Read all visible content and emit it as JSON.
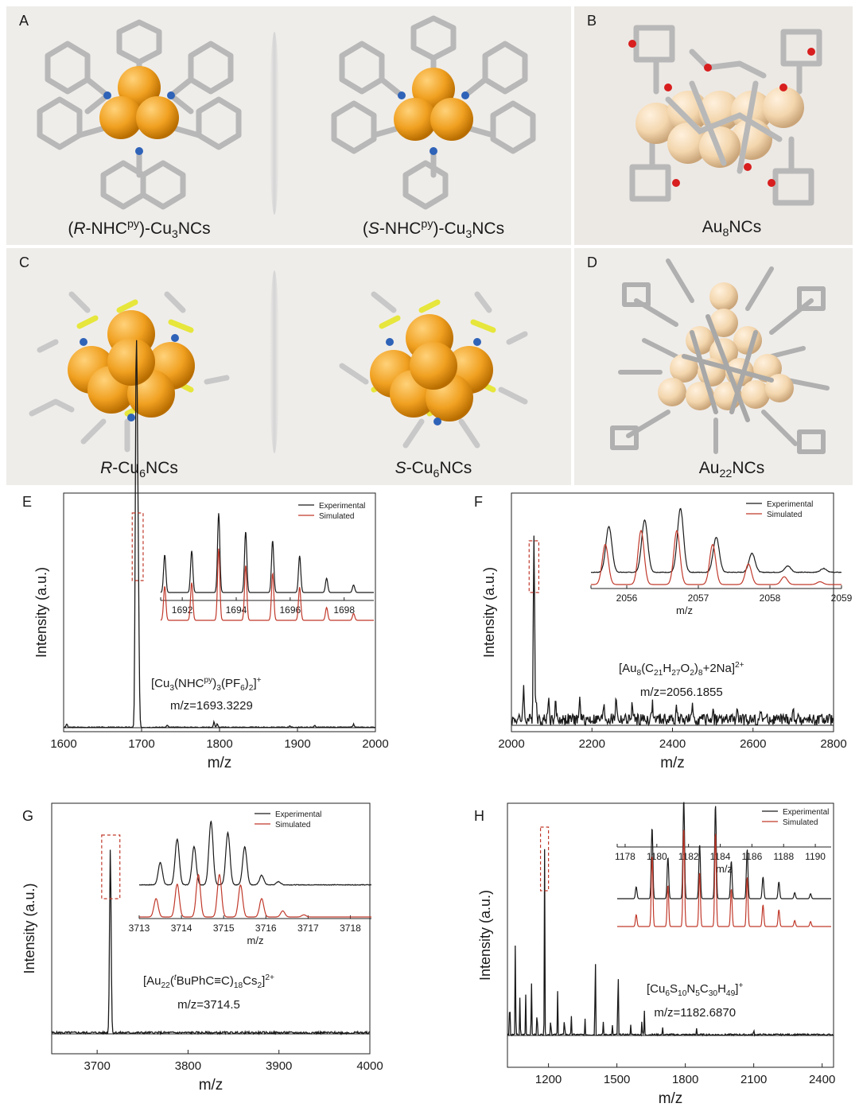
{
  "panels": {
    "A": {
      "label": "A",
      "captions": [
        {
          "pre": "(",
          "italic": "R",
          "mid": "-NHC",
          "sup": "py",
          "post": ")-Cu",
          "sub": "3",
          "tail": "NCs"
        },
        {
          "pre": "(",
          "italic": "S",
          "mid": "-NHC",
          "sup": "py",
          "post": ")-Cu",
          "sub": "3",
          "tail": "NCs"
        }
      ]
    },
    "B": {
      "label": "B",
      "caption": {
        "pre": "Au",
        "sub": "8",
        "tail": "NCs"
      }
    },
    "C": {
      "label": "C",
      "captions": [
        {
          "italic": "R",
          "pre": "-Cu",
          "sub": "6",
          "tail": "NCs"
        },
        {
          "italic": "S",
          "pre": "-Cu",
          "sub": "6",
          "tail": "NCs"
        }
      ]
    },
    "D": {
      "label": "D",
      "caption": {
        "pre": "Au",
        "sub": "22",
        "tail": "NCs"
      }
    },
    "E": {
      "label": "E"
    },
    "F": {
      "label": "F"
    },
    "G": {
      "label": "G"
    },
    "H": {
      "label": "H"
    }
  },
  "colors": {
    "panel_bg": "#efedea",
    "cu_atom": "#f0a020",
    "au_atom": "#f3d6ad",
    "carbon": "#bdbdbd",
    "nitrogen": "#2f63b8",
    "oxygen": "#d81e1e",
    "sulfur": "#e6e63c",
    "experimental": "#1a1a1a",
    "simulated": "#c0392b"
  },
  "chart_data": [
    {
      "id": "E",
      "type": "line",
      "xlabel": "m/z",
      "ylabel": "Intensity (a.u.)",
      "xlim": [
        1600,
        2000
      ],
      "xticks": [
        1600,
        1700,
        1800,
        1900,
        2000
      ],
      "main_peaks": [
        [
          1604,
          0.015
        ],
        [
          1692,
          0.55
        ],
        [
          1693,
          0.97
        ],
        [
          1694,
          0.85
        ],
        [
          1695,
          0.6
        ],
        [
          1696,
          0.35
        ],
        [
          1697,
          0.12
        ],
        [
          1733,
          0.01
        ],
        [
          1793,
          0.025
        ],
        [
          1797,
          0.015
        ],
        [
          1890,
          0.008
        ],
        [
          1922,
          0.01
        ],
        [
          1972,
          0.015
        ]
      ],
      "highlight_box": [
        1688,
        1702
      ],
      "annotation": {
        "pre": "[Cu",
        "s1": "3",
        "m1": "(NHC",
        "sup1": "py",
        "m2": ")",
        "s2": "3",
        "m3": "(PF",
        "s3": "6",
        "m4": ")",
        "s4": "2",
        "m5": "]",
        "sup2": "+",
        "line2": "m/z=1693.3229"
      },
      "inset": {
        "xlim": [
          1691.2,
          1699.1
        ],
        "xticks": [
          1692,
          1694,
          1696,
          1698
        ],
        "legend": [
          "Experimental",
          "Simulated"
        ],
        "peaks": [
          [
            1691.35,
            0.45
          ],
          [
            1692.35,
            0.5
          ],
          [
            1693.35,
            0.95
          ],
          [
            1694.35,
            0.73
          ],
          [
            1695.35,
            0.62
          ],
          [
            1696.35,
            0.44
          ],
          [
            1697.35,
            0.17
          ],
          [
            1698.35,
            0.09
          ]
        ]
      }
    },
    {
      "id": "F",
      "type": "line",
      "xlabel": "m/z",
      "ylabel": "Intensity (a.u.)",
      "xlim": [
        2000,
        2800
      ],
      "xticks": [
        2000,
        2200,
        2400,
        2600,
        2800
      ],
      "main_peaks": [
        [
          2056,
          0.98
        ],
        [
          2030,
          0.17
        ],
        [
          2062,
          0.1
        ],
        [
          2092,
          0.12
        ],
        [
          2110,
          0.09
        ],
        [
          2170,
          0.11
        ],
        [
          2230,
          0.09
        ],
        [
          2260,
          0.13
        ],
        [
          2300,
          0.08
        ],
        [
          2350,
          0.08
        ],
        [
          2410,
          0.07
        ],
        [
          2450,
          0.06
        ],
        [
          2500,
          0.06
        ],
        [
          2560,
          0.05
        ],
        [
          2620,
          0.05
        ],
        [
          2700,
          0.04
        ]
      ],
      "highlight_box": [
        2044,
        2068
      ],
      "annotation": {
        "pre": "[Au",
        "s1": "8",
        "m1": "(C",
        "s2": "21",
        "m2": "H",
        "s3": "27",
        "m3": "O",
        "s4": "2",
        "m4": ")",
        "s5": "8",
        "m5": "+2Na]",
        "sup": "2+",
        "line2": "m/z=2056.1855"
      },
      "inset": {
        "xlim": [
          2055.5,
          2059
        ],
        "xticks": [
          2056,
          2057,
          2058,
          2059
        ],
        "xlabel": "m/z",
        "legend": [
          "Experimental",
          "Simulated"
        ],
        "exp_peaks": [
          [
            2055.75,
            0.72
          ],
          [
            2056.25,
            0.82
          ],
          [
            2056.75,
            1.0
          ],
          [
            2057.25,
            0.55
          ],
          [
            2057.75,
            0.3
          ],
          [
            2058.25,
            0.1
          ],
          [
            2058.75,
            0.06
          ]
        ],
        "sim_peaks": [
          [
            2055.7,
            0.72
          ],
          [
            2056.2,
            0.97
          ],
          [
            2056.7,
            0.97
          ],
          [
            2057.2,
            0.72
          ],
          [
            2057.7,
            0.37
          ],
          [
            2058.2,
            0.14
          ],
          [
            2058.7,
            0.05
          ]
        ]
      }
    },
    {
      "id": "G",
      "type": "line",
      "xlabel": "m/z",
      "ylabel": "Intensity (a.u.)",
      "xlim": [
        3650,
        4000
      ],
      "xticks": [
        3700,
        3800,
        3900,
        4000
      ],
      "main_peaks": [
        [
          3714.5,
          0.97
        ]
      ],
      "highlight_box": [
        3705,
        3725
      ],
      "annotation": {
        "pre": "[Au",
        "s1": "22",
        "m1": "(",
        "sup1": "t",
        "m2": "BuPhC≡C)",
        "s2": "18",
        "m3": "Cs",
        "s3": "2",
        "m4": "]",
        "sup2": "2+",
        "line2": "m/z=3714.5"
      },
      "inset": {
        "xlim": [
          3713,
          3718.5
        ],
        "xticks": [
          3713,
          3714,
          3715,
          3716,
          3717,
          3718
        ],
        "xlabel": "m/z",
        "legend": [
          "Experimental",
          "Simulated"
        ],
        "exp_peaks": [
          [
            3713.5,
            0.35
          ],
          [
            3713.9,
            0.72
          ],
          [
            3714.3,
            0.6
          ],
          [
            3714.7,
            1.0
          ],
          [
            3715.1,
            0.82
          ],
          [
            3715.5,
            0.6
          ],
          [
            3715.9,
            0.15
          ],
          [
            3716.3,
            0.05
          ]
        ],
        "sim_peaks": [
          [
            3713.4,
            0.42
          ],
          [
            3713.9,
            0.75
          ],
          [
            3714.4,
            0.97
          ],
          [
            3714.9,
            0.97
          ],
          [
            3715.4,
            0.73
          ],
          [
            3715.9,
            0.42
          ],
          [
            3716.4,
            0.14
          ],
          [
            3716.9,
            0.05
          ]
        ]
      }
    },
    {
      "id": "H",
      "type": "line",
      "xlabel": "m/z",
      "ylabel": "Intensity (a.u.)",
      "xlim": [
        1020,
        2450
      ],
      "xticks": [
        1200,
        1500,
        1800,
        2100,
        2400
      ],
      "main_peaks": [
        [
          1030,
          0.28
        ],
        [
          1055,
          0.55
        ],
        [
          1075,
          0.22
        ],
        [
          1100,
          0.2
        ],
        [
          1125,
          0.35
        ],
        [
          1150,
          0.18
        ],
        [
          1182.7,
          0.97
        ],
        [
          1210,
          0.12
        ],
        [
          1240,
          0.22
        ],
        [
          1270,
          0.12
        ],
        [
          1300,
          0.1
        ],
        [
          1360,
          0.08
        ],
        [
          1405,
          0.6
        ],
        [
          1440,
          0.07
        ],
        [
          1480,
          0.05
        ],
        [
          1505,
          0.52
        ],
        [
          1560,
          0.06
        ],
        [
          1610,
          0.09
        ],
        [
          1620,
          0.14
        ],
        [
          1700,
          0.04
        ],
        [
          1850,
          0.04
        ],
        [
          2100,
          0.03
        ]
      ],
      "highlight_box": [
        1165,
        1200
      ],
      "annotation": {
        "pre": "[Cu",
        "s1": "6",
        "m1": "S",
        "s2": "10",
        "m2": "N",
        "s3": "5",
        "m3": "C",
        "s4": "30",
        "m4": "H",
        "s5": "49",
        "m5": "]",
        "sup": "+",
        "line2": "m/z=1182.6870"
      },
      "inset": {
        "xlim": [
          1177.5,
          1191
        ],
        "xticks": [
          1178,
          1180,
          1182,
          1184,
          1186,
          1188,
          1190
        ],
        "xlabel": "m/z",
        "legend": [
          "Experimental",
          "Simulated"
        ],
        "peaks": [
          [
            1178.7,
            0.12
          ],
          [
            1179.7,
            0.72
          ],
          [
            1180.7,
            0.42
          ],
          [
            1181.7,
            1.0
          ],
          [
            1182.7,
            0.55
          ],
          [
            1183.7,
            0.95
          ],
          [
            1184.7,
            0.38
          ],
          [
            1185.7,
            0.5
          ],
          [
            1186.7,
            0.22
          ],
          [
            1187.7,
            0.17
          ],
          [
            1188.7,
            0.06
          ],
          [
            1189.7,
            0.05
          ]
        ]
      }
    }
  ]
}
